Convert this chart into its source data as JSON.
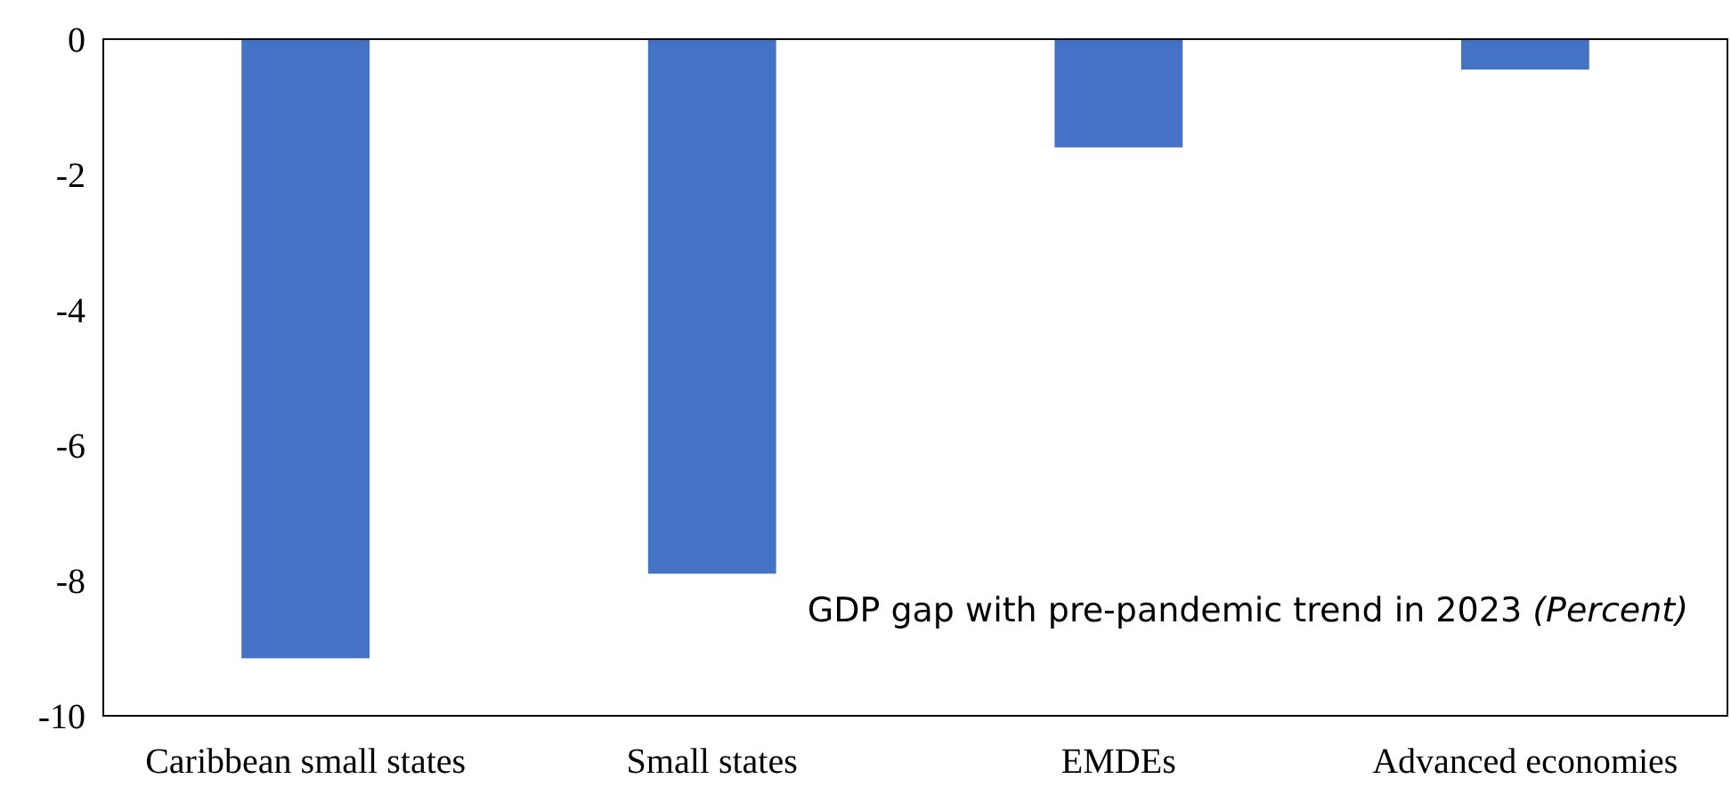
{
  "chart_data": {
    "type": "bar",
    "categories": [
      "Caribbean small states",
      "Small states",
      "EMDEs",
      "Advanced economies"
    ],
    "values": [
      -9.15,
      -7.9,
      -1.6,
      -0.45
    ],
    "color": "#4472c4",
    "ylim": [
      -10,
      0
    ],
    "yticks": [
      -10,
      -8,
      -6,
      -4,
      -2,
      0
    ],
    "grid": false,
    "annotations": [
      "GDP gap with pre-pandemic trend in 2023 (Percent)"
    ]
  }
}
